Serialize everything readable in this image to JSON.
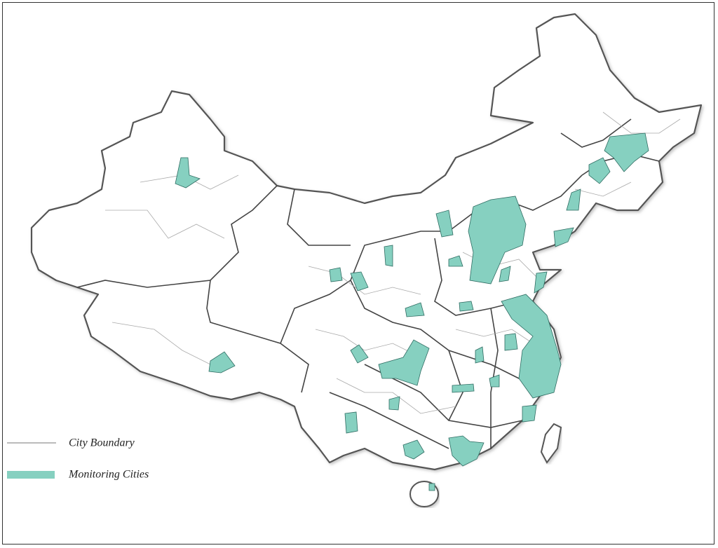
{
  "legend": {
    "items": [
      {
        "label": "City Boundary"
      },
      {
        "label": "Monitoring Cities"
      }
    ]
  }
}
